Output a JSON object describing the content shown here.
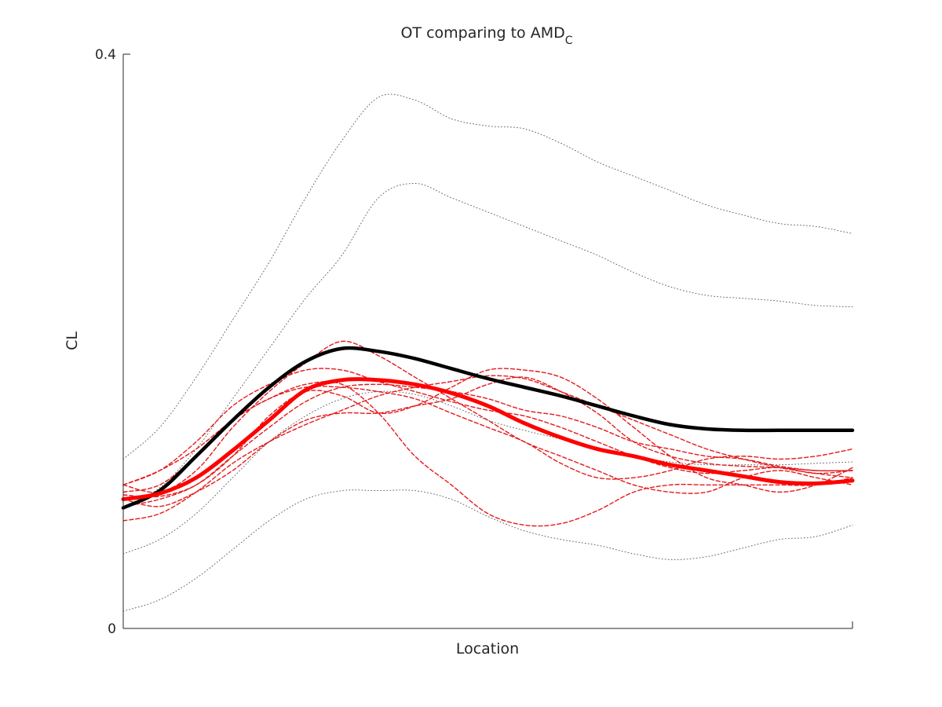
{
  "chart_data": {
    "type": "line",
    "title": "OT comparing to AMD",
    "title_subscript": "C",
    "xlabel": "Location",
    "ylabel": "CL",
    "xlim": [
      0,
      100
    ],
    "ylim": [
      0,
      0.4
    ],
    "yticks": [
      {
        "value": 0,
        "label": "0"
      },
      {
        "value": 0.4,
        "label": "0.4"
      }
    ],
    "xticks": [],
    "grid": false,
    "legend": "none",
    "colors": {
      "black": "#000000",
      "red": "#ff0000",
      "dashed_red": "#e41a1c",
      "dotted": "#555555"
    },
    "x": [
      0,
      5,
      10,
      15,
      20,
      25,
      30,
      35,
      40,
      45,
      50,
      55,
      60,
      65,
      70,
      75,
      80,
      85,
      90,
      95,
      100
    ],
    "series": [
      {
        "style": "solid-black",
        "values": [
          0.084,
          0.096,
          0.12,
          0.145,
          0.168,
          0.186,
          0.195,
          0.193,
          0.188,
          0.181,
          0.174,
          0.168,
          0.162,
          0.155,
          0.148,
          0.142,
          0.139,
          0.138,
          0.138,
          0.138,
          0.138
        ]
      },
      {
        "style": "solid-red",
        "values": [
          0.09,
          0.094,
          0.105,
          0.124,
          0.145,
          0.166,
          0.173,
          0.173,
          0.17,
          0.164,
          0.155,
          0.143,
          0.133,
          0.125,
          0.12,
          0.114,
          0.11,
          0.106,
          0.102,
          0.101,
          0.103
        ]
      },
      {
        "style": "dashed-red",
        "values": [
          0.1,
          0.095,
          0.11,
          0.14,
          0.165,
          0.185,
          0.2,
          0.19,
          0.175,
          0.16,
          0.145,
          0.13,
          0.12,
          0.11,
          0.1,
          0.095,
          0.095,
          0.105,
          0.11,
          0.105,
          0.1
        ]
      },
      {
        "style": "dashed-red",
        "values": [
          0.095,
          0.1,
          0.12,
          0.145,
          0.16,
          0.17,
          0.17,
          0.15,
          0.12,
          0.1,
          0.08,
          0.072,
          0.073,
          0.082,
          0.095,
          0.1,
          0.1,
          0.1,
          0.1,
          0.1,
          0.105
        ]
      },
      {
        "style": "dashed-red",
        "values": [
          0.085,
          0.09,
          0.1,
          0.12,
          0.14,
          0.158,
          0.168,
          0.17,
          0.168,
          0.165,
          0.16,
          0.152,
          0.148,
          0.14,
          0.13,
          0.125,
          0.12,
          0.118,
          0.113,
          0.11,
          0.11
        ]
      },
      {
        "style": "dashed-red",
        "values": [
          0.09,
          0.085,
          0.095,
          0.11,
          0.13,
          0.145,
          0.15,
          0.15,
          0.155,
          0.16,
          0.17,
          0.175,
          0.165,
          0.15,
          0.13,
          0.12,
          0.115,
          0.113,
          0.112,
          0.11,
          0.11
        ]
      },
      {
        "style": "dashed-red",
        "values": [
          0.075,
          0.08,
          0.095,
          0.115,
          0.13,
          0.142,
          0.152,
          0.162,
          0.168,
          0.172,
          0.176,
          0.174,
          0.165,
          0.155,
          0.145,
          0.135,
          0.125,
          0.118,
          0.112,
          0.108,
          0.105
        ]
      },
      {
        "style": "dashed-red",
        "values": [
          0.1,
          0.11,
          0.125,
          0.145,
          0.16,
          0.168,
          0.168,
          0.165,
          0.16,
          0.15,
          0.14,
          0.13,
          0.115,
          0.105,
          0.105,
          0.11,
          0.118,
          0.12,
          0.118,
          0.12,
          0.125
        ]
      },
      {
        "style": "dashed-red",
        "values": [
          0.1,
          0.11,
          0.13,
          0.155,
          0.17,
          0.18,
          0.18,
          0.172,
          0.165,
          0.158,
          0.152,
          0.148,
          0.14,
          0.13,
          0.12,
          0.112,
          0.108,
          0.11,
          0.112,
          0.108,
          0.11
        ]
      },
      {
        "style": "dashed-red",
        "values": [
          0.093,
          0.092,
          0.1,
          0.12,
          0.148,
          0.165,
          0.162,
          0.15,
          0.155,
          0.168,
          0.18,
          0.18,
          0.175,
          0.16,
          0.14,
          0.12,
          0.105,
          0.1,
          0.095,
          0.1,
          0.112
        ]
      },
      {
        "style": "dotted",
        "values": [
          0.012,
          0.02,
          0.035,
          0.055,
          0.075,
          0.09,
          0.096,
          0.096,
          0.096,
          0.09,
          0.078,
          0.068,
          0.062,
          0.058,
          0.052,
          0.048,
          0.05,
          0.056,
          0.062,
          0.064,
          0.072
        ]
      },
      {
        "style": "dotted",
        "values": [
          0.052,
          0.062,
          0.08,
          0.105,
          0.13,
          0.148,
          0.16,
          0.165,
          0.163,
          0.155,
          0.145,
          0.138,
          0.132,
          0.126,
          0.12,
          0.116,
          0.114,
          0.114,
          0.114,
          0.115,
          0.116
        ]
      },
      {
        "style": "dotted",
        "values": [
          0.085,
          0.098,
          0.125,
          0.16,
          0.195,
          0.23,
          0.26,
          0.3,
          0.31,
          0.3,
          0.29,
          0.28,
          0.27,
          0.26,
          0.248,
          0.238,
          0.232,
          0.23,
          0.228,
          0.225,
          0.224
        ]
      },
      {
        "style": "dotted",
        "values": [
          0.118,
          0.14,
          0.175,
          0.215,
          0.255,
          0.3,
          0.34,
          0.37,
          0.368,
          0.355,
          0.35,
          0.348,
          0.338,
          0.325,
          0.315,
          0.305,
          0.295,
          0.288,
          0.282,
          0.28,
          0.275
        ]
      }
    ]
  }
}
